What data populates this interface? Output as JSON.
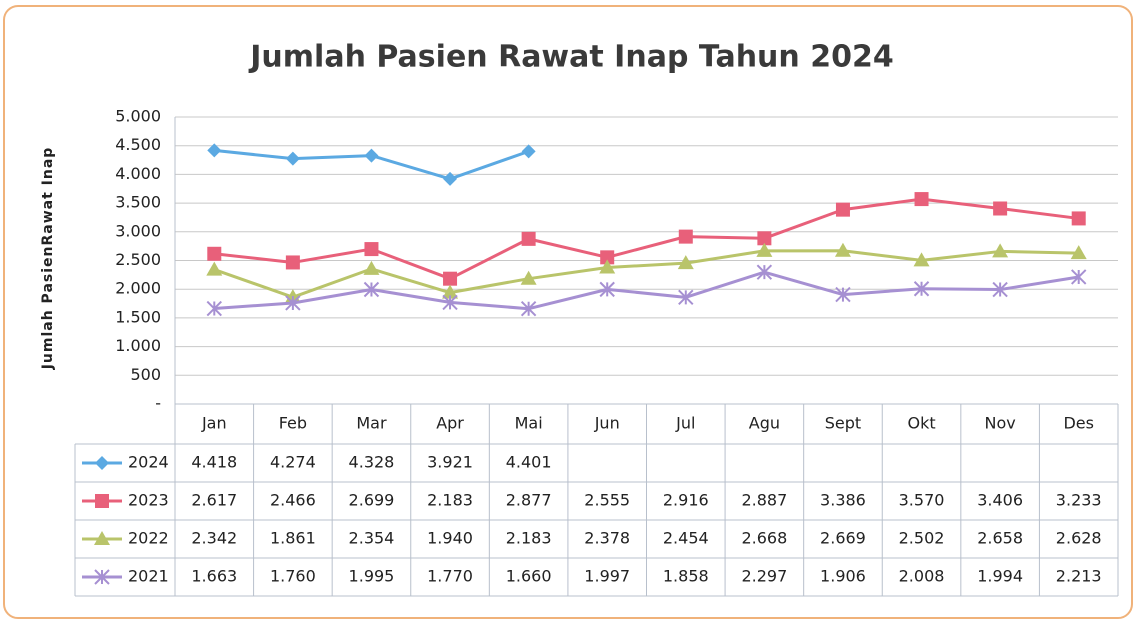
{
  "chart_data": {
    "type": "line",
    "title": "Jumlah Pasien Rawat Inap Tahun 2024",
    "y_label": "Jumlah PasienRawat Inap",
    "categories": [
      "Jan",
      "Feb",
      "Mar",
      "Apr",
      "Mai",
      "Jun",
      "Jul",
      "Agu",
      "Sept",
      "Okt",
      "Nov",
      "Des"
    ],
    "ylim": [
      0,
      5000
    ],
    "yticks": [
      {
        "value": 0,
        "label": "-"
      },
      {
        "value": 500,
        "label": "500"
      },
      {
        "value": 1000,
        "label": "1.000"
      },
      {
        "value": 1500,
        "label": "1.500"
      },
      {
        "value": 2000,
        "label": "2.000"
      },
      {
        "value": 2500,
        "label": "2.500"
      },
      {
        "value": 3000,
        "label": "3.000"
      },
      {
        "value": 3500,
        "label": "3.500"
      },
      {
        "value": 4000,
        "label": "4.000"
      },
      {
        "value": 4500,
        "label": "4.500"
      },
      {
        "value": 5000,
        "label": "5.000"
      }
    ],
    "grid": true,
    "series": [
      {
        "name": "2024",
        "color": "#5ba9e2",
        "marker": "diamond",
        "values": [
          4418,
          4274,
          4328,
          3921,
          4401,
          null,
          null,
          null,
          null,
          null,
          null,
          null
        ],
        "value_labels": [
          "4.418",
          "4.274",
          "4.328",
          "3.921",
          "4.401",
          null,
          null,
          null,
          null,
          null,
          null,
          null
        ]
      },
      {
        "name": "2023",
        "color": "#e8607a",
        "marker": "square",
        "values": [
          2617,
          2466,
          2699,
          2183,
          2877,
          2555,
          2916,
          2887,
          3386,
          3570,
          3406,
          3233
        ],
        "value_labels": [
          "2.617",
          "2.466",
          "2.699",
          "2.183",
          "2.877",
          "2.555",
          "2.916",
          "2.887",
          "3.386",
          "3.570",
          "3.406",
          "3.233"
        ]
      },
      {
        "name": "2022",
        "color": "#b9c46a",
        "marker": "triangle",
        "values": [
          2342,
          1861,
          2354,
          1940,
          2183,
          2378,
          2454,
          2668,
          2669,
          2502,
          2658,
          2628
        ],
        "value_labels": [
          "2.342",
          "1.861",
          "2.354",
          "1.940",
          "2.183",
          "2.378",
          "2.454",
          "2.668",
          "2.669",
          "2.502",
          "2.658",
          "2.628"
        ]
      },
      {
        "name": "2021",
        "color": "#a690d2",
        "marker": "star",
        "values": [
          1663,
          1760,
          1995,
          1770,
          1660,
          1997,
          1858,
          2297,
          1906,
          2008,
          1994,
          2213
        ],
        "value_labels": [
          "1.663",
          "1.760",
          "1.995",
          "1.770",
          "1.660",
          "1.997",
          "1.858",
          "2.297",
          "1.906",
          "2.008",
          "1.994",
          "2.213"
        ]
      }
    ]
  }
}
